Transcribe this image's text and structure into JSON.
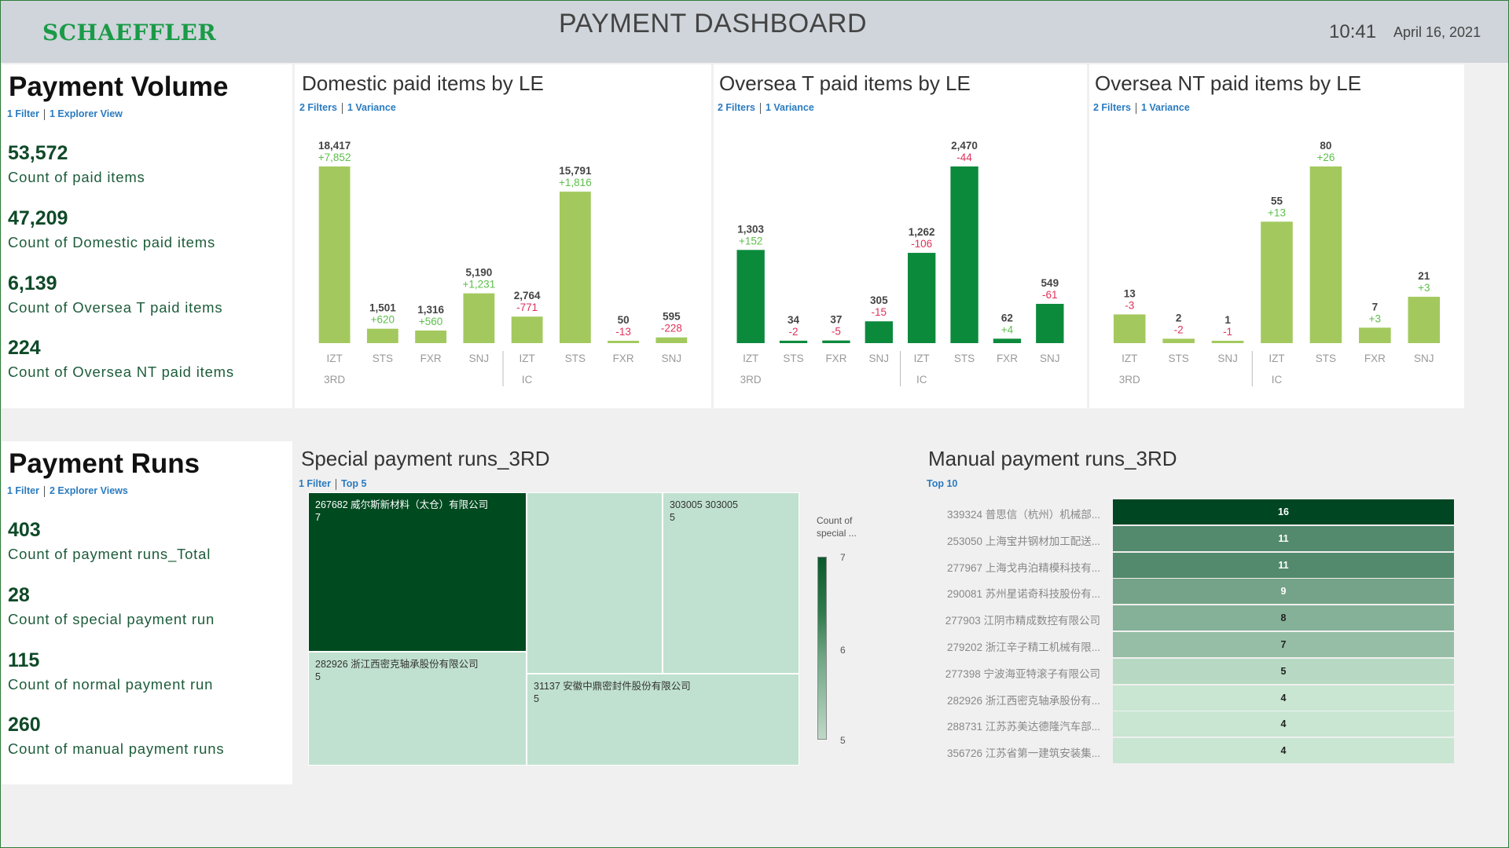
{
  "header": {
    "logo_text": "SCHAEFFLER",
    "title": "PAYMENT DASHBOARD",
    "time": "10:41",
    "date": "April 16, 2021"
  },
  "payment_volume": {
    "title": "Payment Volume",
    "link_filter": "1 Filter",
    "link_view": "1 Explorer View",
    "kpis": [
      {
        "value": "53,572",
        "label": "Count of paid items"
      },
      {
        "value": "47,209",
        "label": "Count of Domestic paid items"
      },
      {
        "value": "6,139",
        "label": "Count of Oversea T paid items"
      },
      {
        "value": "224",
        "label": "Count of Oversea NT paid items"
      }
    ]
  },
  "payment_runs": {
    "title": "Payment Runs",
    "link_filter": "1 Filter",
    "link_view": "2 Explorer Views",
    "kpis": [
      {
        "value": "403",
        "label": "Count of payment runs_Total"
      },
      {
        "value": "28",
        "label": "Count of special payment run"
      },
      {
        "value": "115",
        "label": "Count of normal payment run"
      },
      {
        "value": "260",
        "label": "Count of manual payment runs"
      }
    ]
  },
  "colors": {
    "light_green": "#a3c95e",
    "dark_green": "#0c8a3c",
    "positive_variance": "#5cbf4a",
    "negative_variance": "#e0305a",
    "treemap_dark": "#004a20",
    "treemap_light": "#c0e1cf",
    "link_blue": "#2a7bbf"
  },
  "chart_data": [
    {
      "type": "bar",
      "title": "Domestic paid items by LE",
      "links": [
        "2 Filters",
        "1 Variance"
      ],
      "groups": [
        {
          "name": "3RD",
          "categories": [
            "IZT",
            "STS",
            "FXR",
            "SNJ"
          ],
          "values": [
            18417,
            1501,
            1316,
            5190
          ],
          "value_labels": [
            "18,417",
            "1,501",
            "1,316",
            "5,190"
          ],
          "variances": [
            "+7,852",
            "+620",
            "+560",
            "+1,231"
          ]
        },
        {
          "name": "IC",
          "categories": [
            "IZT",
            "STS",
            "FXR",
            "SNJ"
          ],
          "values": [
            2764,
            15791,
            50,
            595
          ],
          "value_labels": [
            "2,764",
            "15,791",
            "50",
            "595"
          ],
          "variances": [
            "-771",
            "+1,816",
            "-13",
            "-228"
          ]
        }
      ],
      "color": "light",
      "ylim": [
        0,
        18417
      ]
    },
    {
      "type": "bar",
      "title": "Oversea T paid items by LE",
      "links": [
        "2 Filters",
        "1 Variance"
      ],
      "groups": [
        {
          "name": "3RD",
          "categories": [
            "IZT",
            "STS",
            "FXR",
            "SNJ"
          ],
          "values": [
            1303,
            34,
            37,
            305
          ],
          "value_labels": [
            "1,303",
            "34",
            "37",
            "305"
          ],
          "variances": [
            "+152",
            "-2",
            "-5",
            "-15"
          ]
        },
        {
          "name": "IC",
          "categories": [
            "IZT",
            "STS",
            "FXR",
            "SNJ"
          ],
          "values": [
            1262,
            2470,
            62,
            549
          ],
          "value_labels": [
            "1,262",
            "2,470",
            "62",
            "549"
          ],
          "variances": [
            "-106",
            "-44",
            "+4",
            "-61"
          ]
        }
      ],
      "color": "dark",
      "ylim": [
        0,
        2470
      ]
    },
    {
      "type": "bar",
      "title": "Oversea NT paid items by LE",
      "links": [
        "2 Filters",
        "1 Variance"
      ],
      "groups": [
        {
          "name": "3RD",
          "categories": [
            "IZT",
            "STS",
            "SNJ"
          ],
          "values": [
            13,
            2,
            1
          ],
          "value_labels": [
            "13",
            "2",
            "1"
          ],
          "variances": [
            "-3",
            "-2",
            "-1"
          ]
        },
        {
          "name": "IC",
          "categories": [
            "IZT",
            "STS",
            "FXR",
            "SNJ"
          ],
          "values": [
            55,
            80,
            7,
            21
          ],
          "value_labels": [
            "55",
            "80",
            "7",
            "21"
          ],
          "variances": [
            "+13",
            "+26",
            "+3",
            "+3"
          ]
        }
      ],
      "color": "light",
      "ylim": [
        0,
        80
      ]
    },
    {
      "type": "heatmap",
      "title": "Special payment runs_3RD",
      "links": [
        "1 Filter",
        "Top 5"
      ],
      "cells": [
        {
          "label": "267682 威尔斯新材料（太仓）有限公司",
          "value": 7
        },
        {
          "label": "",
          "value": 5
        },
        {
          "label": "303005 303005",
          "value": 5
        },
        {
          "label": "282926 浙江西密克轴承股份有限公司",
          "value": 5
        },
        {
          "label": "31137 安徽中鼎密封件股份有限公司",
          "value": 5
        }
      ],
      "legend_title": "Count of special ...",
      "legend_ticks": [
        "7",
        "6",
        "5"
      ]
    },
    {
      "type": "bar",
      "title": "Manual payment runs_3RD",
      "links": [
        "Top 10"
      ],
      "categories": [
        "339324 普思信（杭州）机械部...",
        "253050 上海宝井钢材加工配送...",
        "277967 上海戈冉泊精模科技有...",
        "290081 苏州星诺奇科技股份有...",
        "277903 江阴市精成数控有限公司",
        "279202 浙江辛子精工机械有限...",
        "277398 宁波海亚特滚子有限公司",
        "282926 浙江西密克轴承股份有...",
        "288731 江苏苏美达德隆汽车部...",
        "356726 江苏省第一建筑安装集..."
      ],
      "values": [
        16,
        11,
        11,
        9,
        8,
        7,
        5,
        4,
        4,
        4
      ]
    }
  ]
}
